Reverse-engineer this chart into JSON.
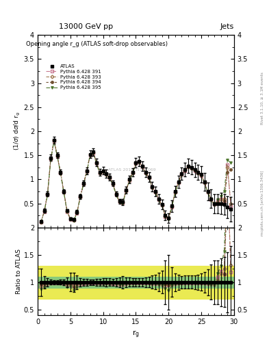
{
  "title_top": "13000 GeV pp",
  "title_right": "Jets",
  "ylabel_main": "(1/σ) dσ/d r_g",
  "ylabel_ratio": "Ratio to ATLAS",
  "xlabel": "r_g",
  "plot_title": "Opening angle r_g (ATLAS soft-drop observables)",
  "watermark": "ATLAS 2019_I1772069",
  "right_label_top": "Rivet 3.1.10, ≥ 3.1M events",
  "right_label_bottom": "mcplots.cern.ch [arXiv:1306.3436]",
  "xlim": [
    0,
    30
  ],
  "ylim_main": [
    0,
    4.0
  ],
  "ylim_ratio": [
    0.4,
    2.0
  ],
  "xticks": [
    0,
    5,
    10,
    15,
    20,
    25,
    30
  ],
  "yticks_main": [
    0.5,
    1.0,
    1.5,
    2.0,
    2.5,
    3.0,
    3.5,
    4.0
  ],
  "yticks_ratio": [
    0.5,
    1.0,
    1.5,
    2.0
  ],
  "atlas_x": [
    0.5,
    1.0,
    1.5,
    2.0,
    2.5,
    3.0,
    3.5,
    4.0,
    4.5,
    5.0,
    5.5,
    6.0,
    6.5,
    7.0,
    7.5,
    8.0,
    8.5,
    9.0,
    9.5,
    10.0,
    10.5,
    11.0,
    11.5,
    12.0,
    12.5,
    13.0,
    13.5,
    14.0,
    14.5,
    15.0,
    15.5,
    16.0,
    16.5,
    17.0,
    17.5,
    18.0,
    18.5,
    19.0,
    19.5,
    20.0,
    20.5,
    21.0,
    21.5,
    22.0,
    22.5,
    23.0,
    23.5,
    24.0,
    24.5,
    25.0,
    25.5,
    26.0,
    26.5,
    27.0,
    27.5,
    28.0,
    28.5,
    29.0,
    29.5
  ],
  "atlas_y": [
    0.12,
    0.35,
    0.7,
    1.45,
    1.82,
    1.5,
    1.15,
    0.75,
    0.35,
    0.18,
    0.17,
    0.32,
    0.65,
    0.92,
    1.18,
    1.52,
    1.57,
    1.35,
    1.15,
    1.18,
    1.12,
    1.05,
    0.92,
    0.7,
    0.55,
    0.53,
    0.78,
    1.0,
    1.15,
    1.35,
    1.38,
    1.28,
    1.15,
    1.05,
    0.85,
    0.75,
    0.6,
    0.48,
    0.25,
    0.2,
    0.45,
    0.75,
    0.95,
    1.12,
    1.2,
    1.28,
    1.25,
    1.2,
    1.15,
    1.1,
    0.95,
    0.75,
    0.6,
    0.5,
    0.5,
    0.5,
    0.48,
    0.42,
    0.38
  ],
  "atlas_yerr": [
    0.03,
    0.04,
    0.05,
    0.06,
    0.07,
    0.06,
    0.05,
    0.04,
    0.03,
    0.03,
    0.03,
    0.04,
    0.05,
    0.06,
    0.07,
    0.08,
    0.08,
    0.08,
    0.07,
    0.08,
    0.08,
    0.07,
    0.06,
    0.05,
    0.05,
    0.06,
    0.07,
    0.08,
    0.09,
    0.1,
    0.1,
    0.1,
    0.1,
    0.1,
    0.1,
    0.1,
    0.1,
    0.1,
    0.1,
    0.1,
    0.12,
    0.12,
    0.13,
    0.13,
    0.14,
    0.15,
    0.15,
    0.15,
    0.16,
    0.17,
    0.18,
    0.18,
    0.19,
    0.2,
    0.2,
    0.22,
    0.22,
    0.23,
    0.25
  ],
  "py391_y": [
    0.11,
    0.33,
    0.68,
    1.42,
    1.8,
    1.48,
    1.13,
    0.73,
    0.33,
    0.17,
    0.16,
    0.3,
    0.63,
    0.9,
    1.16,
    1.5,
    1.55,
    1.33,
    1.13,
    1.16,
    1.1,
    1.03,
    0.9,
    0.68,
    0.53,
    0.51,
    0.76,
    0.98,
    1.13,
    1.33,
    1.36,
    1.26,
    1.13,
    1.03,
    0.83,
    0.73,
    0.58,
    0.46,
    0.23,
    0.19,
    0.43,
    0.73,
    0.93,
    1.1,
    1.18,
    1.26,
    1.23,
    1.18,
    1.13,
    1.08,
    0.93,
    0.73,
    0.58,
    0.48,
    0.55,
    0.6,
    0.55,
    1.3,
    0.45
  ],
  "py393_y": [
    0.11,
    0.34,
    0.69,
    1.43,
    1.81,
    1.49,
    1.14,
    0.74,
    0.34,
    0.175,
    0.16,
    0.31,
    0.64,
    0.91,
    1.17,
    1.51,
    1.56,
    1.34,
    1.14,
    1.17,
    1.11,
    1.04,
    0.91,
    0.69,
    0.54,
    0.52,
    0.77,
    0.99,
    1.14,
    1.34,
    1.37,
    1.27,
    1.14,
    1.04,
    0.84,
    0.74,
    0.59,
    0.47,
    0.24,
    0.19,
    0.44,
    0.74,
    0.94,
    1.11,
    1.19,
    1.27,
    1.24,
    1.19,
    1.14,
    1.09,
    0.94,
    0.74,
    0.59,
    0.49,
    0.52,
    0.58,
    0.6,
    1.25,
    0.5
  ],
  "py394_y": [
    0.115,
    0.34,
    0.69,
    1.43,
    1.81,
    1.49,
    1.14,
    0.74,
    0.34,
    0.175,
    0.155,
    0.31,
    0.64,
    0.91,
    1.17,
    1.51,
    1.56,
    1.34,
    1.14,
    1.17,
    1.11,
    1.04,
    0.91,
    0.69,
    0.54,
    0.52,
    0.77,
    0.99,
    1.14,
    1.34,
    1.37,
    1.27,
    1.14,
    1.04,
    0.84,
    0.74,
    0.59,
    0.47,
    0.24,
    0.19,
    0.44,
    0.74,
    0.94,
    1.11,
    1.19,
    1.27,
    1.24,
    1.19,
    1.14,
    1.09,
    0.94,
    0.74,
    0.59,
    0.49,
    0.5,
    0.5,
    0.55,
    1.15,
    1.2
  ],
  "py395_y": [
    0.105,
    0.32,
    0.67,
    1.41,
    1.79,
    1.47,
    1.12,
    0.72,
    0.32,
    0.165,
    0.145,
    0.29,
    0.62,
    0.89,
    1.15,
    1.49,
    1.54,
    1.32,
    1.12,
    1.15,
    1.09,
    1.02,
    0.89,
    0.67,
    0.52,
    0.5,
    0.75,
    0.97,
    1.12,
    1.32,
    1.35,
    1.25,
    1.12,
    1.02,
    0.82,
    0.72,
    0.57,
    0.45,
    0.22,
    0.17,
    0.42,
    0.72,
    0.92,
    1.09,
    1.17,
    1.25,
    1.22,
    1.17,
    1.12,
    1.07,
    0.92,
    0.72,
    0.57,
    0.47,
    0.58,
    0.65,
    0.75,
    1.4,
    1.35
  ],
  "py391_color": "#c87890",
  "py393_color": "#a07850",
  "py394_color": "#705030",
  "py395_color": "#507830",
  "atlas_color": "#000000",
  "band_green": "#80c880",
  "band_yellow": "#e8e840"
}
